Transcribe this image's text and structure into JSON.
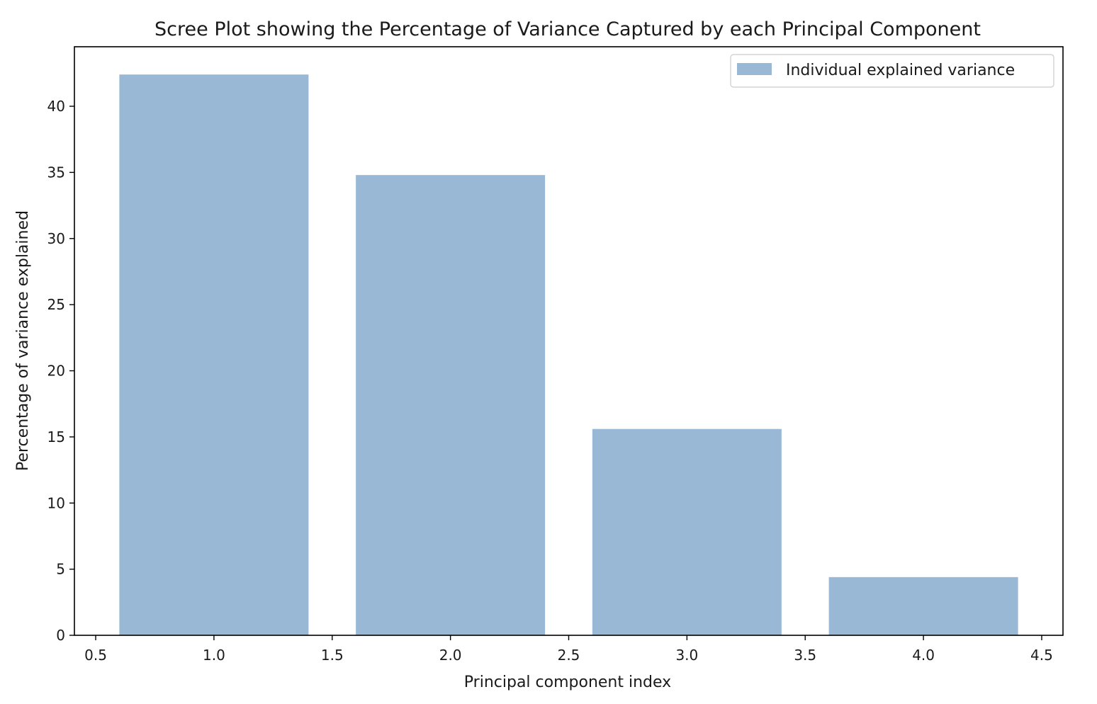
{
  "chart_data": {
    "type": "bar",
    "title": "Scree Plot showing the Percentage of Variance Captured by each Principal Component",
    "xlabel": "Principal component index",
    "ylabel": "Percentage of variance explained",
    "x": [
      1,
      2,
      3,
      4
    ],
    "bar_width": 0.8,
    "series": [
      {
        "name": "Individual explained variance",
        "values": [
          42.4,
          34.8,
          15.6,
          4.4
        ],
        "color": "#98b8d6"
      }
    ],
    "xlim": [
      0.41,
      4.59
    ],
    "ylim": [
      0,
      44.5
    ],
    "xticks": [
      "0.5",
      "1.0",
      "1.5",
      "2.0",
      "2.5",
      "3.0",
      "3.5",
      "4.0",
      "4.5"
    ],
    "yticks": [
      "0",
      "5",
      "10",
      "15",
      "20",
      "25",
      "30",
      "35",
      "40"
    ],
    "grid": false,
    "legend_position": "top-right"
  }
}
